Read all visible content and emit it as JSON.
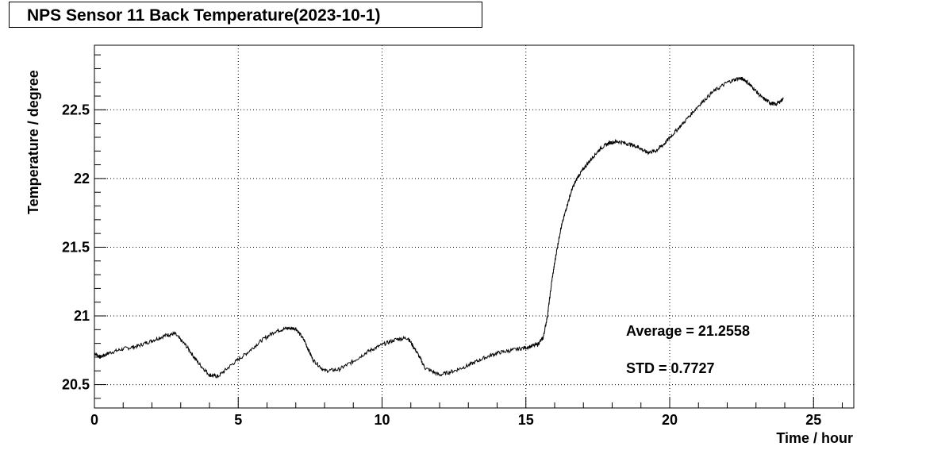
{
  "chart_data": {
    "type": "line",
    "title": "NPS Sensor 11 Back Temperature(2023-10-1)",
    "xlabel": "Time / hour",
    "ylabel": "Temperature / degree",
    "xlim": [
      0,
      26.4
    ],
    "ylim": [
      20.33,
      22.97
    ],
    "xticks": [
      0,
      5,
      10,
      15,
      20,
      25
    ],
    "yticks": [
      20.5,
      21,
      21.5,
      22,
      22.5
    ],
    "xtick_labels": [
      "0",
      "5",
      "10",
      "15",
      "20",
      "25"
    ],
    "ytick_labels": [
      "20.5",
      "21",
      "21.5",
      "22",
      "22.5"
    ],
    "grid": true,
    "line_color": "#000000",
    "series": [
      {
        "x": [
          0,
          0.2,
          0.5,
          1.0,
          1.5,
          2.0,
          2.5,
          2.8,
          3.2,
          3.6,
          4.0,
          4.3,
          4.8,
          5.3,
          5.8,
          6.3,
          6.7,
          7.0,
          7.3,
          7.6,
          8.0,
          8.5,
          9.0,
          9.5,
          10.0,
          10.5,
          10.9,
          11.2,
          11.5,
          12.0,
          12.5,
          13.0,
          13.5,
          14.0,
          14.5,
          15.0,
          15.4,
          15.6,
          15.75,
          15.9,
          16.05,
          16.2,
          16.4,
          16.6,
          16.8,
          17.0,
          17.3,
          17.6,
          17.9,
          18.2,
          18.6,
          18.9,
          19.2,
          19.5,
          19.8,
          20.1,
          20.5,
          21.0,
          21.5,
          22.0,
          22.4,
          22.6,
          22.9,
          23.2,
          23.5,
          23.7,
          23.95
        ],
        "y": [
          20.73,
          20.7,
          20.73,
          20.76,
          20.78,
          20.82,
          20.86,
          20.87,
          20.78,
          20.66,
          20.57,
          20.56,
          20.65,
          20.73,
          20.82,
          20.89,
          20.91,
          20.91,
          20.82,
          20.68,
          20.6,
          20.61,
          20.67,
          20.74,
          20.79,
          20.83,
          20.84,
          20.74,
          20.62,
          20.57,
          20.6,
          20.64,
          20.69,
          20.73,
          20.75,
          20.77,
          20.79,
          20.84,
          21.0,
          21.25,
          21.45,
          21.62,
          21.78,
          21.92,
          22.01,
          22.07,
          22.15,
          22.22,
          22.26,
          22.27,
          22.25,
          22.23,
          22.19,
          22.2,
          22.25,
          22.32,
          22.41,
          22.53,
          22.63,
          22.7,
          22.73,
          22.72,
          22.66,
          22.59,
          22.55,
          22.54,
          22.58
        ]
      }
    ],
    "annotations": [
      "Average = 21.2558",
      "STD = 0.7727"
    ]
  }
}
